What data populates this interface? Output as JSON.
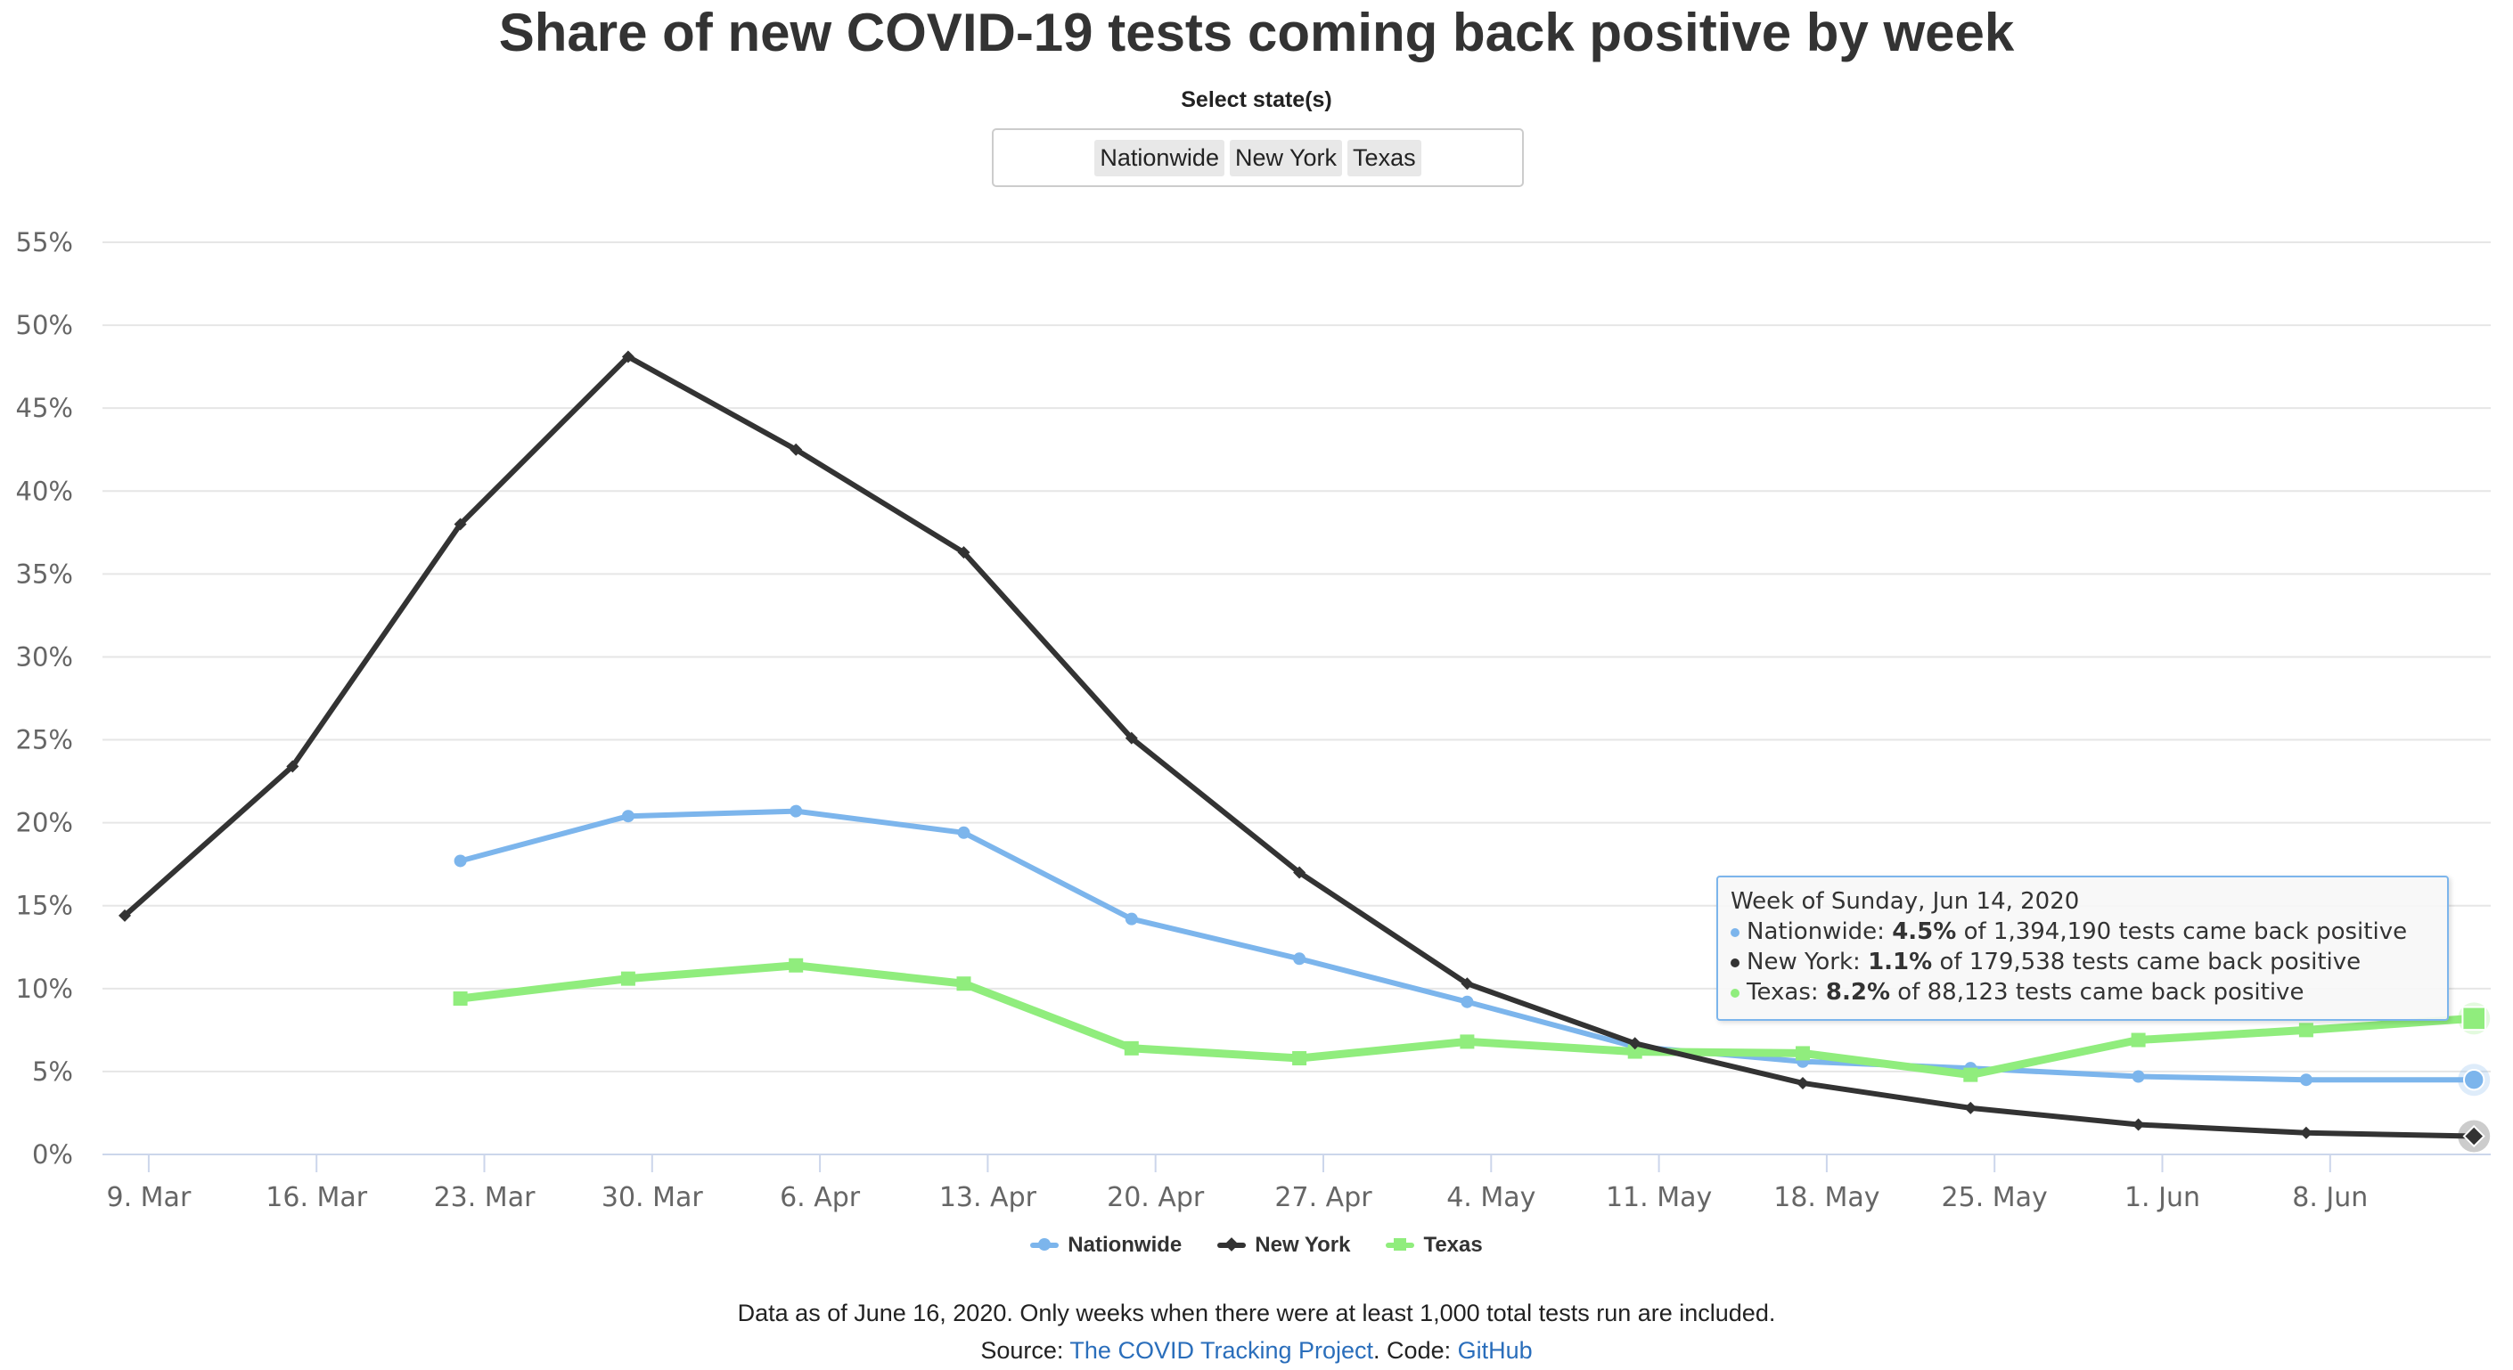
{
  "title": "Share of new COVID-19 tests coming back positive by week",
  "selector": {
    "label": "Select state(s)",
    "selected": [
      "Nationwide",
      "New York",
      "Texas"
    ]
  },
  "legend": [
    {
      "name": "Nationwide",
      "color": "#7cb5ec",
      "marker": "circle"
    },
    {
      "name": "New York",
      "color": "#333333",
      "marker": "diamond"
    },
    {
      "name": "Texas",
      "color": "#90ed7d",
      "marker": "square"
    }
  ],
  "tooltip": {
    "header": "Week of Sunday, Jun 14, 2020",
    "rows": [
      {
        "series": "Nationwide",
        "color": "#7cb5ec",
        "prefix": "Nationwide: ",
        "value": "4.5%",
        "suffix": " of 1,394,190 tests came back positive"
      },
      {
        "series": "New York",
        "color": "#333333",
        "prefix": "New York: ",
        "value": "1.1%",
        "suffix": " of 179,538 tests came back positive"
      },
      {
        "series": "Texas",
        "color": "#90ed7d",
        "prefix": "Texas: ",
        "value": "8.2%",
        "suffix": " of 88,123 tests came back positive"
      }
    ]
  },
  "footer": {
    "note": "Data as of June 16, 2020. Only weeks when there were at least 1,000 total tests run are included.",
    "source_prefix": "Source: ",
    "source_link": "The COVID Tracking Project",
    "code_prefix": ". Code: ",
    "code_link": "GitHub"
  },
  "chart_data": {
    "type": "line",
    "title": "Share of new COVID-19 tests coming back positive by week",
    "x": [
      "2020-03-08",
      "2020-03-15",
      "2020-03-22",
      "2020-03-29",
      "2020-04-05",
      "2020-04-12",
      "2020-04-19",
      "2020-04-26",
      "2020-05-03",
      "2020-05-10",
      "2020-05-17",
      "2020-05-24",
      "2020-05-31",
      "2020-06-07",
      "2020-06-14"
    ],
    "x_tick_labels": [
      "9. Mar",
      "16. Mar",
      "23. Mar",
      "30. Mar",
      "6. Apr",
      "13. Apr",
      "20. Apr",
      "27. Apr",
      "4. May",
      "11. May",
      "18. May",
      "25. May",
      "1. Jun",
      "8. Jun"
    ],
    "x_tick_dates": [
      "2020-03-09",
      "2020-03-16",
      "2020-03-23",
      "2020-03-30",
      "2020-04-06",
      "2020-04-13",
      "2020-04-20",
      "2020-04-27",
      "2020-05-04",
      "2020-05-11",
      "2020-05-18",
      "2020-05-25",
      "2020-06-01",
      "2020-06-08"
    ],
    "y_ticks": [
      "0%",
      "5%",
      "10%",
      "15%",
      "20%",
      "25%",
      "30%",
      "35%",
      "40%",
      "45%",
      "50%",
      "55%"
    ],
    "ylim": [
      0,
      55
    ],
    "grid": true,
    "legend_position": "bottom-center",
    "series": [
      {
        "name": "Nationwide",
        "color": "#7cb5ec",
        "marker": "circle",
        "width": 6,
        "values": [
          null,
          null,
          17.7,
          20.4,
          20.7,
          19.4,
          14.2,
          11.8,
          9.2,
          6.5,
          5.6,
          5.2,
          4.7,
          4.5,
          4.5
        ]
      },
      {
        "name": "New York",
        "color": "#333333",
        "marker": "diamond",
        "width": 6,
        "values": [
          14.4,
          23.4,
          38.0,
          48.1,
          42.5,
          36.3,
          25.1,
          17.0,
          10.3,
          6.7,
          4.3,
          2.8,
          1.8,
          1.3,
          1.1
        ]
      },
      {
        "name": "Texas",
        "color": "#90ed7d",
        "marker": "square",
        "width": 9,
        "values": [
          null,
          null,
          9.4,
          10.6,
          11.4,
          10.3,
          6.4,
          5.8,
          6.8,
          6.2,
          6.1,
          4.8,
          6.9,
          7.5,
          8.2
        ]
      }
    ]
  }
}
